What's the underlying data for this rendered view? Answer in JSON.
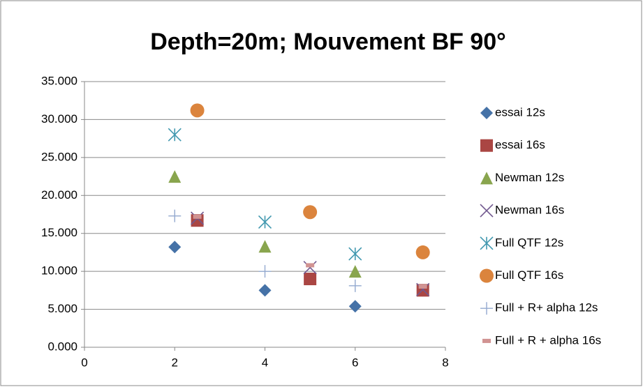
{
  "chart_data": {
    "type": "scatter",
    "title": "Depth=20m; Mouvement BF 90°",
    "xlim": [
      0,
      8
    ],
    "xticks": [
      0,
      2,
      4,
      6,
      8
    ],
    "ylim": [
      0,
      35
    ],
    "yticks": [
      {
        "value": 0,
        "label": "0.000"
      },
      {
        "value": 5,
        "label": "5.000"
      },
      {
        "value": 10,
        "label": "10.000"
      },
      {
        "value": 15,
        "label": "15.000"
      },
      {
        "value": 20,
        "label": "20.000"
      },
      {
        "value": 25,
        "label": "25.000"
      },
      {
        "value": 30,
        "label": "30.000"
      },
      {
        "value": 35,
        "label": "35.000"
      }
    ],
    "grid": true,
    "legend": "right",
    "series": [
      {
        "name": "essai 12s",
        "color": "#4572a7",
        "marker": "diamond",
        "x": [
          2,
          4,
          6,
          7.5
        ],
        "values": [
          13.2,
          7.5,
          5.4,
          7.5
        ]
      },
      {
        "name": "essai 16s",
        "color": "#aa4643",
        "marker": "square",
        "x": [
          2.5,
          5,
          7.5
        ],
        "values": [
          16.7,
          9.0,
          7.5
        ]
      },
      {
        "name": "Newman 12s",
        "color": "#89a54e",
        "marker": "triangle",
        "x": [
          2,
          4,
          6
        ],
        "values": [
          22.5,
          13.3,
          10.0
        ]
      },
      {
        "name": "Newman 16s",
        "color": "#71588f",
        "marker": "x",
        "x": [
          2.5,
          5,
          7.5
        ],
        "values": [
          17.0,
          10.5,
          7.6
        ]
      },
      {
        "name": "Full QTF 12s",
        "color": "#4198af",
        "marker": "star",
        "x": [
          2,
          4,
          6
        ],
        "values": [
          28.0,
          16.5,
          12.3
        ]
      },
      {
        "name": "Full QTF 16s",
        "color": "#db843d",
        "marker": "circle",
        "x": [
          2.5,
          5,
          7.5
        ],
        "values": [
          31.2,
          17.8,
          12.5
        ]
      },
      {
        "name": "Full + R+ alpha 12s",
        "color": "#93a9cf",
        "marker": "plus",
        "x": [
          2,
          4,
          6
        ],
        "values": [
          17.3,
          10.0,
          8.1
        ]
      },
      {
        "name": "Full + R + alpha 16s",
        "color": "#d19392",
        "marker": "dash",
        "x": [
          2.5,
          5,
          7.5
        ],
        "values": [
          17.2,
          10.8,
          8.0
        ]
      }
    ]
  }
}
